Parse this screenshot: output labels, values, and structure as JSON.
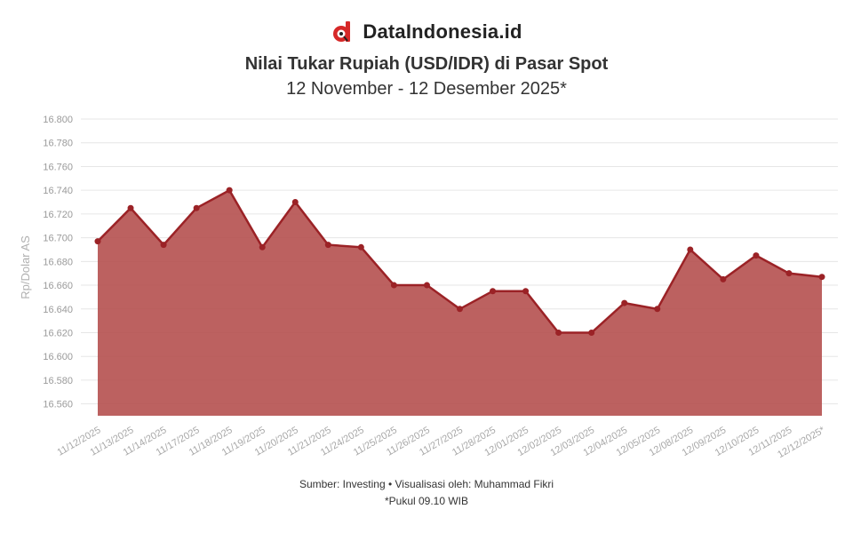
{
  "header": {
    "brand": "DataIndonesia.id",
    "title": "Nilai Tukar Rupiah (USD/IDR) di Pasar Spot",
    "subtitle": "12 November - 12 Desember 2025*"
  },
  "footer": {
    "source": "Sumber: Investing • Visualisasi oleh: Muhammad Fikri",
    "note": "*Pukul 09.10 WIB"
  },
  "colors": {
    "line": "#9b2226",
    "area": "#b5504f",
    "grid": "#e6e6e6"
  },
  "icons": {
    "logo": "dataindonesia-logo"
  },
  "chart_data": {
    "type": "area",
    "ylabel": "Rp/Dolar AS",
    "xlabel": "",
    "ylim": [
      16550,
      16800
    ],
    "yticks": [
      16560,
      16580,
      16600,
      16620,
      16640,
      16660,
      16680,
      16700,
      16720,
      16740,
      16760,
      16780,
      16800
    ],
    "ytick_labels": [
      "16.560",
      "16.580",
      "16.600",
      "16.620",
      "16.640",
      "16.660",
      "16.680",
      "16.700",
      "16.720",
      "16.740",
      "16.760",
      "16.780",
      "16.800"
    ],
    "grid": true,
    "legend": "none",
    "categories": [
      "11/12/2025",
      "11/13/2025",
      "11/14/2025",
      "11/17/2025",
      "11/18/2025",
      "11/19/2025",
      "11/20/2025",
      "11/21/2025",
      "11/24/2025",
      "11/25/2025",
      "11/26/2025",
      "11/27/2025",
      "11/28/2025",
      "12/01/2025",
      "12/02/2025",
      "12/03/2025",
      "12/04/2025",
      "12/05/2025",
      "12/08/2025",
      "12/09/2025",
      "12/10/2025",
      "12/11/2025",
      "12/12/2025*"
    ],
    "values": [
      16697,
      16725,
      16694,
      16725,
      16740,
      16692,
      16730,
      16694,
      16692,
      16660,
      16660,
      16640,
      16655,
      16655,
      16620,
      16620,
      16645,
      16640,
      16690,
      16665,
      16685,
      16670,
      16667
    ]
  }
}
